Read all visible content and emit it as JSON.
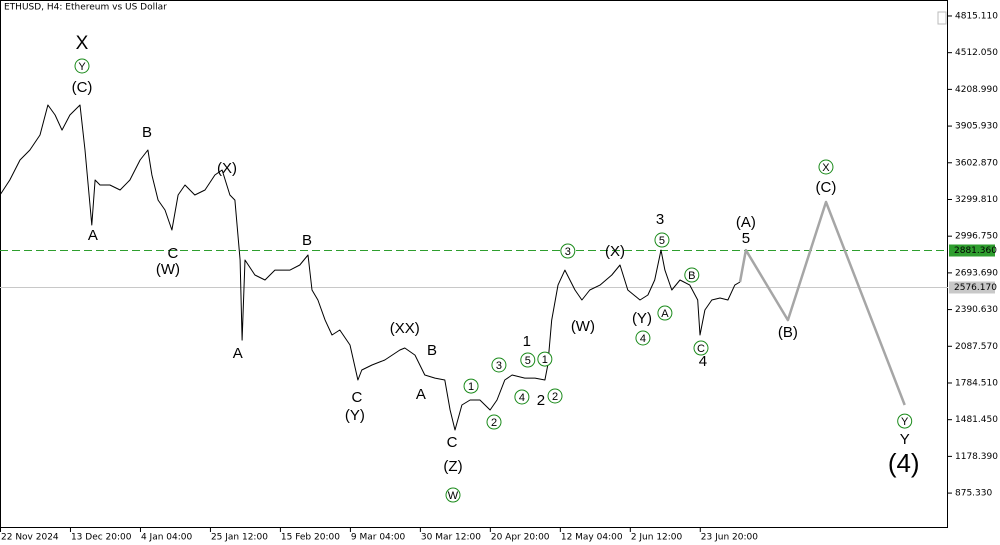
{
  "chart_data": {
    "type": "line",
    "title": "ETHUSD, H4:  Ethereum vs US Dollar",
    "xlim": [
      0,
      289
    ],
    "ylim": [
      587,
      4947
    ],
    "xticks": [
      {
        "value": 0,
        "label": "22 Nov 2024"
      },
      {
        "value": 21.33,
        "label": "13 Dec 20:00"
      },
      {
        "value": 42.67,
        "label": "4 Jan 04:00"
      },
      {
        "value": 64,
        "label": "25 Jan 12:00"
      },
      {
        "value": 85.33,
        "label": "15 Feb 20:00"
      },
      {
        "value": 106.67,
        "label": "9 Mar 04:00"
      },
      {
        "value": 128,
        "label": "30 Mar 12:00"
      },
      {
        "value": 149.33,
        "label": "20 Apr 20:00"
      },
      {
        "value": 170.67,
        "label": "12 May 04:00"
      },
      {
        "value": 192,
        "label": "2 Jun 12:00"
      },
      {
        "value": 213.33,
        "label": "23 Jun 20:00"
      }
    ],
    "yticks": [
      {
        "value": 4815.11,
        "label": "4815.110"
      },
      {
        "value": 4512.05,
        "label": "4512.050"
      },
      {
        "value": 4208.99,
        "label": "4208.990"
      },
      {
        "value": 3905.93,
        "label": "3905.930"
      },
      {
        "value": 3602.87,
        "label": "3602.870"
      },
      {
        "value": 3299.81,
        "label": "3299.810"
      },
      {
        "value": 2996.75,
        "label": "2996.750"
      },
      {
        "value": 2693.69,
        "label": "2693.690"
      },
      {
        "value": 2390.63,
        "label": "2390.630"
      },
      {
        "value": 2087.57,
        "label": "2087.570"
      },
      {
        "value": 1784.51,
        "label": "1784.510"
      },
      {
        "value": 1481.45,
        "label": "1481.450"
      },
      {
        "value": 1178.39,
        "label": "1178.390"
      },
      {
        "value": 875.33,
        "label": "875.330"
      }
    ],
    "series": [
      {
        "color": "#000000",
        "x": [
          0,
          3.0,
          6.1,
          9.1,
          12.2,
          14.6,
          16.8,
          18.9,
          21.3,
          24.4,
          25.9,
          28.0,
          29.0,
          30.5,
          33.5,
          36.6,
          39.6,
          42.7,
          45.1,
          46.3,
          48.2,
          50.3,
          52.4,
          54.3,
          56.4,
          59.4,
          62.5,
          65.5,
          67.7,
          70.1,
          71.6,
          73.2,
          73.8,
          74.7,
          77.7,
          80.8,
          83.8,
          88.4,
          91.4,
          93.9,
          95.1,
          96.9,
          99.1,
          101.2,
          103.6,
          106.7,
          109.1,
          110.3,
          113.4,
          117.3,
          121.9,
          123.4,
          126.5,
          129.5,
          132.6,
          135.6,
          137.2,
          138.7,
          140.8,
          143.3,
          146.3,
          149.4,
          151.5,
          153.9,
          156.1,
          160.0,
          163.1,
          166.1,
          167.0,
          168.2,
          170.1,
          172.2,
          175.3,
          177.4,
          179.8,
          182.9,
          186.5,
          189.0,
          191.4,
          195.1,
          197.5,
          199.6,
          201.5,
          202.7,
          204.8,
          207.3,
          210.3,
          212.7,
          213.4,
          214.9,
          217.0,
          219.5,
          221.9,
          224.0,
          225.6
        ],
        "values": [
          3337,
          3461,
          3626,
          3708,
          3832,
          4080,
          3997,
          3873,
          3997,
          4080,
          3708,
          3089,
          3461,
          3419,
          3419,
          3378,
          3461,
          3626,
          3708,
          3502,
          3295,
          3213,
          3048,
          3337,
          3419,
          3337,
          3378,
          3502,
          3543,
          3337,
          3295,
          2800,
          2139,
          2800,
          2676,
          2635,
          2717,
          2717,
          2759,
          2841,
          2552,
          2470,
          2304,
          2181,
          2222,
          2098,
          1809,
          1892,
          1933,
          1974,
          2057,
          2073,
          2015,
          1850,
          1825,
          1809,
          1561,
          1396,
          1603,
          1644,
          1644,
          1561,
          1644,
          1809,
          1850,
          1825,
          1825,
          1809,
          1933,
          2304,
          2593,
          2717,
          2552,
          2470,
          2552,
          2593,
          2676,
          2759,
          2552,
          2470,
          2511,
          2635,
          2882,
          2717,
          2552,
          2635,
          2593,
          2470,
          2181,
          2387,
          2470,
          2486,
          2470,
          2593,
          2618
        ]
      },
      {
        "color": "#a6a6a6",
        "x": [
          225.6,
          227.4,
          240.2,
          251.8,
          275.8
        ],
        "values": [
          2618,
          2882,
          2304,
          3279,
          1603
        ]
      }
    ],
    "price_lines": [
      {
        "value": 2881.36,
        "label": "2881.360",
        "color": "#2e9e2e",
        "dashed": true
      },
      {
        "value": 2576.17,
        "label": "2576.170",
        "color": "#c8c8c8",
        "dashed": false
      }
    ],
    "annotations": [
      {
        "color": "#8b1414",
        "circled": false,
        "large": true,
        "labels": [
          {
            "text": "X",
            "x": 25.0,
            "y": 4584
          }
        ]
      },
      {
        "color": "#8b1414",
        "circled": false,
        "large": false,
        "labels": [
          {
            "text": "B",
            "x": 44.8,
            "y": 3849
          },
          {
            "text": "A",
            "x": 28.3,
            "y": 2998
          },
          {
            "text": "C",
            "x": 52.7,
            "y": 2849
          },
          {
            "text": "A",
            "x": 72.5,
            "y": 2024
          },
          {
            "text": "B",
            "x": 93.6,
            "y": 2957
          },
          {
            "text": "C",
            "x": 108.8,
            "y": 1660
          },
          {
            "text": "B",
            "x": 131.7,
            "y": 2048
          },
          {
            "text": "A",
            "x": 128.3,
            "y": 1685
          },
          {
            "text": "C",
            "x": 137.8,
            "y": 1289
          },
          {
            "text": "1",
            "x": 160.6,
            "y": 2123
          },
          {
            "text": "2",
            "x": 164.9,
            "y": 1636
          },
          {
            "text": "3",
            "x": 201.2,
            "y": 3130
          },
          {
            "text": "4",
            "x": 214.3,
            "y": 1958
          },
          {
            "text": "5",
            "x": 227.4,
            "y": 2973
          },
          {
            "text": "Y",
            "x": 275.8,
            "y": 1313
          }
        ]
      },
      {
        "color": "#1a237e",
        "circled": false,
        "large": false,
        "labels": [
          {
            "text": "(C)",
            "x": 25.0,
            "y": 4220
          },
          {
            "text": "(W)",
            "x": 51.2,
            "y": 2717
          },
          {
            "text": "(X)",
            "x": 69.2,
            "y": 3551
          },
          {
            "text": "(Y)",
            "x": 108.2,
            "y": 1512
          },
          {
            "text": "(XX)",
            "x": 123.4,
            "y": 2230
          },
          {
            "text": "(Z)",
            "x": 138.1,
            "y": 1091
          },
          {
            "text": "(W)",
            "x": 177.7,
            "y": 2247
          },
          {
            "text": "(X)",
            "x": 187.5,
            "y": 2866
          },
          {
            "text": "(Y)",
            "x": 195.7,
            "y": 2313
          },
          {
            "text": "(A)",
            "x": 227.4,
            "y": 3105
          },
          {
            "text": "(B)",
            "x": 240.2,
            "y": 2197
          },
          {
            "text": "(C)",
            "x": 251.8,
            "y": 3394
          }
        ]
      },
      {
        "color": "#1a237e",
        "circled": false,
        "large": true,
        "labels": [
          {
            "text": "(4)",
            "x": 275.5,
            "y": 1107
          }
        ]
      },
      {
        "color": "#1a8a1a",
        "circled": true,
        "large": false,
        "labels": [
          {
            "text": "Y",
            "x": 25.0,
            "y": 4402
          },
          {
            "text": "W",
            "x": 138.1,
            "y": 859
          },
          {
            "text": "1",
            "x": 143.6,
            "y": 1759
          },
          {
            "text": "3",
            "x": 152.1,
            "y": 1933
          },
          {
            "text": "2",
            "x": 150.6,
            "y": 1462
          },
          {
            "text": "4",
            "x": 159.1,
            "y": 1669
          },
          {
            "text": "5",
            "x": 160.9,
            "y": 1974
          },
          {
            "text": "1",
            "x": 166.1,
            "y": 1982
          },
          {
            "text": "2",
            "x": 169.2,
            "y": 1677
          },
          {
            "text": "3",
            "x": 173.1,
            "y": 2874
          },
          {
            "text": "5",
            "x": 201.8,
            "y": 2965
          },
          {
            "text": "B",
            "x": 210.9,
            "y": 2676
          },
          {
            "text": "A",
            "x": 202.7,
            "y": 2362
          },
          {
            "text": "4",
            "x": 196.0,
            "y": 2156
          },
          {
            "text": "C",
            "x": 213.7,
            "y": 2073
          },
          {
            "text": "X",
            "x": 251.8,
            "y": 3568
          },
          {
            "text": "Y",
            "x": 275.8,
            "y": 1470
          }
        ]
      }
    ]
  }
}
